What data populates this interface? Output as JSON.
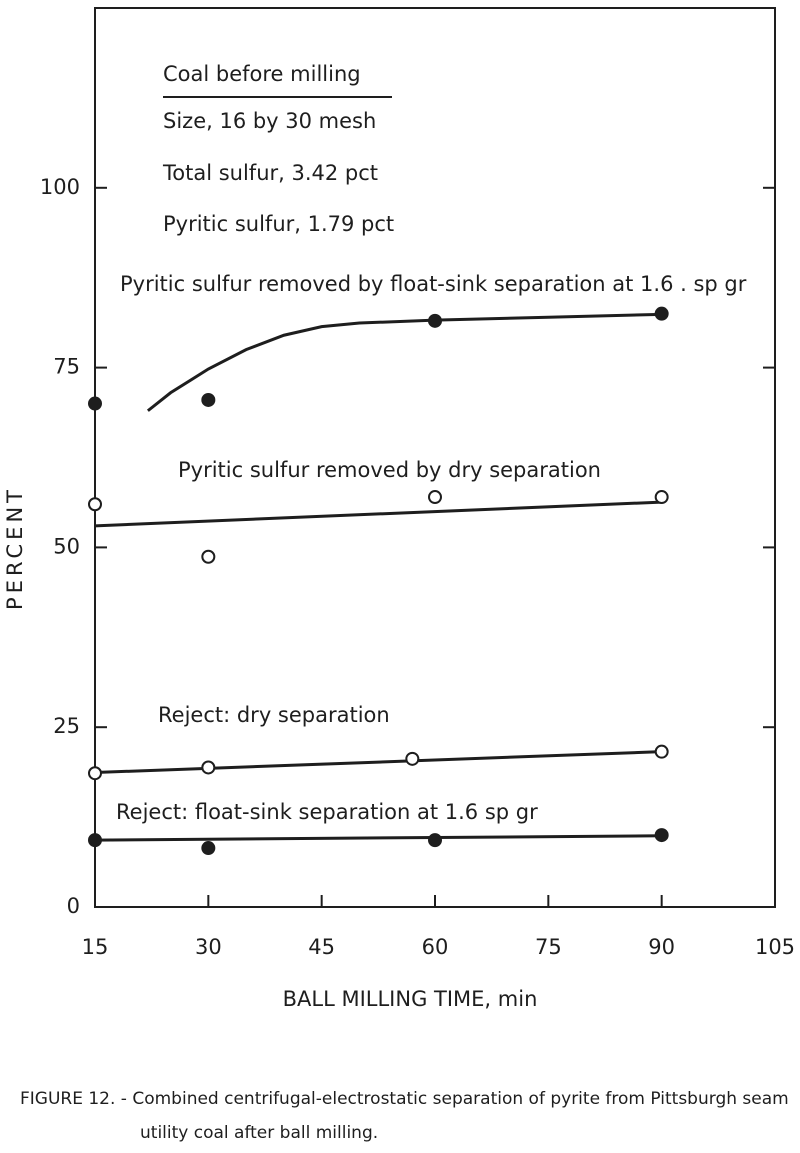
{
  "chart_data": {
    "type": "scatter",
    "x_label": "BALL MILLING TIME, min",
    "y_label": "PERCENT",
    "xlim": [
      15,
      105
    ],
    "xticks": [
      15,
      30,
      45,
      60,
      75,
      90,
      105
    ],
    "ylim": [
      0,
      125
    ],
    "yticks": [
      0,
      25,
      50,
      75,
      100
    ],
    "annotation": {
      "title": "Coal before milling",
      "lines": [
        "Size, 16 by 30 mesh",
        "Total sulfur, 3.42 pct",
        "Pyritic sulfur, 1.79 pct"
      ]
    },
    "series": [
      {
        "name": "Pyritic sulfur removed by float-sink separation at 1.6 . sp gr",
        "marker": "filled",
        "color": "#1e1e1e",
        "x": [
          15,
          30,
          60,
          90
        ],
        "values": [
          70,
          70.5,
          81.5,
          82.5
        ],
        "fit": {
          "x": [
            22,
            25,
            30,
            35,
            40,
            45,
            50,
            60,
            75,
            90
          ],
          "values": [
            69,
            71.5,
            74.8,
            77.5,
            79.5,
            80.7,
            81.2,
            81.6,
            82,
            82.4
          ]
        }
      },
      {
        "name": "Pyritic sulfur removed by dry separation",
        "marker": "open",
        "color": "#1e1e1e",
        "x": [
          15,
          30,
          60,
          90
        ],
        "values": [
          56,
          48.7,
          57,
          57
        ],
        "fit": {
          "x": [
            15,
            90
          ],
          "values": [
            53,
            56.3
          ]
        }
      },
      {
        "name": "Reject: dry separation",
        "marker": "open",
        "color": "#1e1e1e",
        "x": [
          15,
          30,
          57,
          90
        ],
        "values": [
          18.6,
          19.4,
          20.6,
          21.6
        ],
        "fit": {
          "x": [
            15,
            90
          ],
          "values": [
            18.7,
            21.6
          ]
        }
      },
      {
        "name": "Reject: float-sink separation at 1.6 sp gr",
        "marker": "filled",
        "color": "#1e1e1e",
        "x": [
          15,
          30,
          60,
          90
        ],
        "values": [
          9.3,
          8.2,
          9.3,
          10
        ],
        "fit": {
          "x": [
            15,
            90
          ],
          "values": [
            9.3,
            9.9
          ]
        }
      }
    ],
    "caption": "FIGURE 12. - Combined centrifugal-electrostatic separation of pyrite from Pittsburgh seam utility coal after ball milling."
  }
}
